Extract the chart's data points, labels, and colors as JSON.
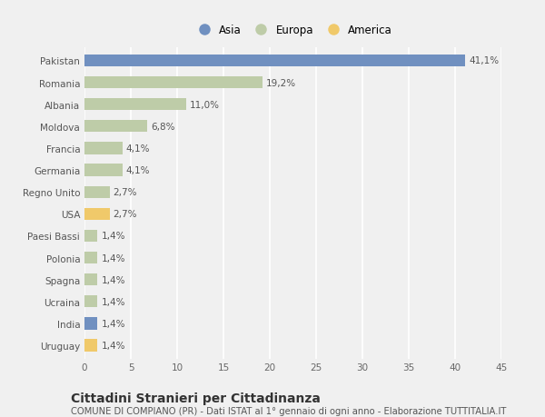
{
  "categories": [
    "Pakistan",
    "Romania",
    "Albania",
    "Moldova",
    "Francia",
    "Germania",
    "Regno Unito",
    "USA",
    "Paesi Bassi",
    "Polonia",
    "Spagna",
    "Ucraina",
    "India",
    "Uruguay"
  ],
  "values": [
    41.1,
    19.2,
    11.0,
    6.8,
    4.1,
    4.1,
    2.7,
    2.7,
    1.4,
    1.4,
    1.4,
    1.4,
    1.4,
    1.4
  ],
  "labels": [
    "41,1%",
    "19,2%",
    "11,0%",
    "6,8%",
    "4,1%",
    "4,1%",
    "2,7%",
    "2,7%",
    "1,4%",
    "1,4%",
    "1,4%",
    "1,4%",
    "1,4%",
    "1,4%"
  ],
  "continents": [
    "Asia",
    "Europa",
    "Europa",
    "Europa",
    "Europa",
    "Europa",
    "Europa",
    "America",
    "Europa",
    "Europa",
    "Europa",
    "Europa",
    "Asia",
    "America"
  ],
  "colors": {
    "Asia": "#7090c0",
    "Europa": "#becca8",
    "America": "#f0c96a"
  },
  "legend_order": [
    "Asia",
    "Europa",
    "America"
  ],
  "xlim": [
    0,
    45
  ],
  "xticks": [
    0,
    5,
    10,
    15,
    20,
    25,
    30,
    35,
    40,
    45
  ],
  "title": "Cittadini Stranieri per Cittadinanza",
  "subtitle": "COMUNE DI COMPIANO (PR) - Dati ISTAT al 1° gennaio di ogni anno - Elaborazione TUTTITALIA.IT",
  "background_color": "#f0f0f0",
  "bar_height": 0.55,
  "grid_color": "#ffffff",
  "label_fontsize": 7.5,
  "tick_fontsize": 7.5,
  "title_fontsize": 10,
  "subtitle_fontsize": 7.2
}
